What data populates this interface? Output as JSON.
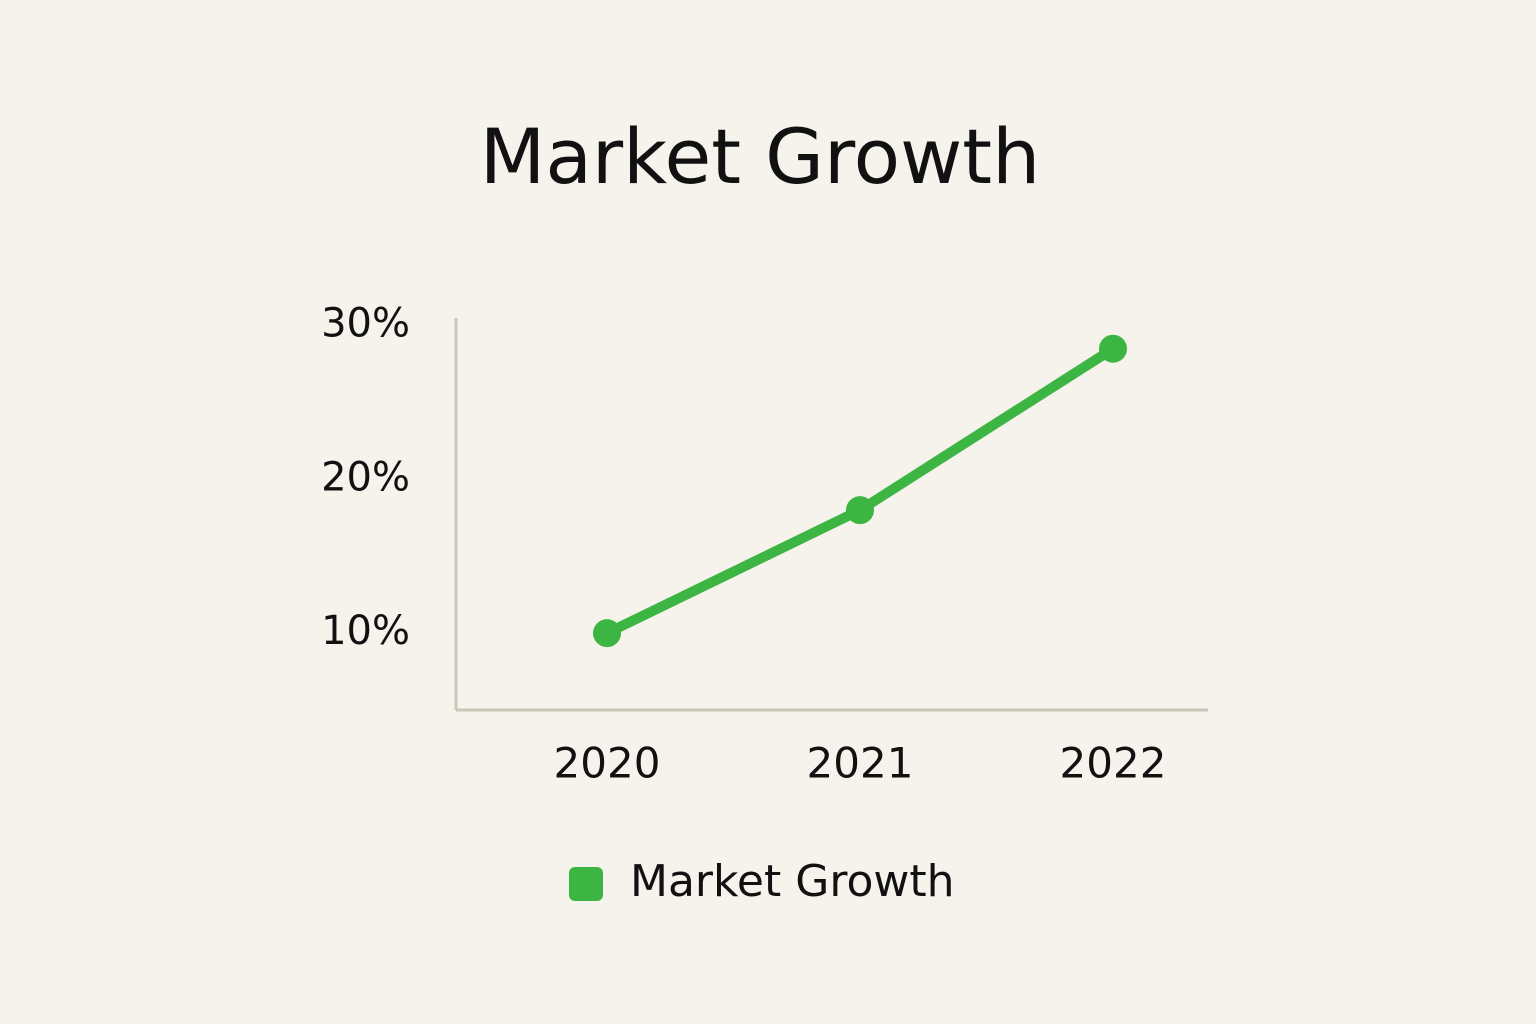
{
  "chart_data": {
    "type": "line",
    "title": "Market Growth",
    "categories": [
      "2020",
      "2021",
      "2022"
    ],
    "series": [
      {
        "name": "Market Growth",
        "color": "#3cb543",
        "values": [
          10,
          18,
          28.5
        ]
      }
    ],
    "ylim": [
      5,
      30.5
    ],
    "yticks": [
      {
        "value": 10,
        "label": "10%"
      },
      {
        "value": 20,
        "label": "20%"
      },
      {
        "value": 30,
        "label": "30%"
      }
    ],
    "grid": false,
    "legend": "bottom"
  }
}
